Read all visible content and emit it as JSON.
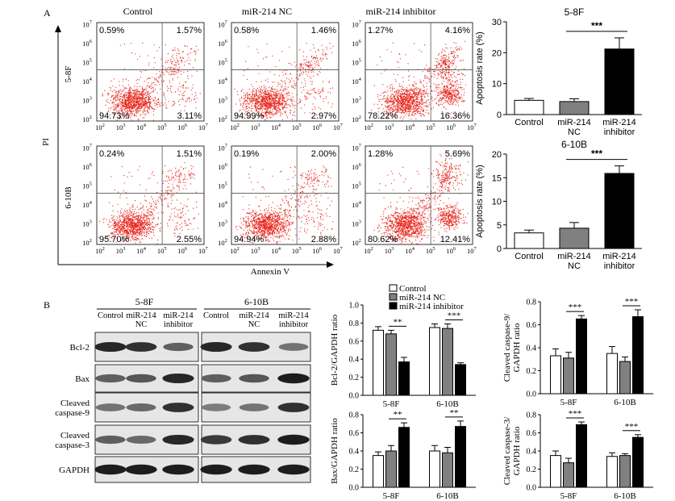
{
  "panels": {
    "A": "A",
    "B": "B"
  },
  "flow": {
    "columns": [
      "Control",
      "miR-214 NC",
      "miR-214 inhibitor"
    ],
    "rows": [
      "5-8F",
      "6-10B"
    ],
    "y_axis_label": "PI",
    "x_axis_label": "Annexin V",
    "tick_labels": [
      "10^2",
      "10^3",
      "10^4",
      "10^5",
      "10^6",
      "10^7"
    ],
    "quadrants": [
      [
        {
          "ul": "0.59%",
          "ur": "1.57%",
          "ll": "94.73%",
          "lr": "3.11%"
        },
        {
          "ul": "0.58%",
          "ur": "1.46%",
          "ll": "94.99%",
          "lr": "2.97%"
        },
        {
          "ul": "1.27%",
          "ur": "4.16%",
          "ll": "78.22%",
          "lr": "16.36%"
        }
      ],
      [
        {
          "ul": "0.24%",
          "ur": "1.51%",
          "ll": "95.70%",
          "lr": "2.55%"
        },
        {
          "ul": "0.19%",
          "ur": "2.00%",
          "ll": "94.94%",
          "lr": "2.88%"
        },
        {
          "ul": "1.28%",
          "ur": "5.69%",
          "ll": "80.62%",
          "lr": "12.41%"
        }
      ]
    ]
  },
  "western": {
    "cell_lines": [
      "5-8F",
      "6-10B"
    ],
    "lanes": [
      "Control",
      "miR-214 NC",
      "miR-214 inhibitor"
    ],
    "bands": [
      "Bcl-2",
      "Bax",
      "Cleaved caspase-9",
      "Cleaved caspase-3",
      "GAPDH"
    ]
  },
  "legend": [
    "Control",
    "miR-214 NC",
    "miR-214 inhibitor"
  ],
  "colors": {
    "control": "#ffffff",
    "nc": "#808080",
    "inhibitor": "#000000",
    "dots": "#e8281e"
  },
  "chart_data": [
    {
      "type": "bar",
      "title": "5-8F",
      "ylabel": "Apoptosis rate (%)",
      "categories": [
        "Control",
        "miR-214 NC",
        "miR-214 inhibitor"
      ],
      "values": [
        4.6,
        4.2,
        21.2
      ],
      "errors": [
        0.6,
        0.9,
        3.6
      ],
      "ylim": [
        0,
        30
      ],
      "ticks": [
        0,
        10,
        20,
        30
      ],
      "significance": "***"
    },
    {
      "type": "bar",
      "title": "6-10B",
      "ylabel": "Apoptosis rate (%)",
      "categories": [
        "Control",
        "miR-214 NC",
        "miR-214 inhibitor"
      ],
      "values": [
        3.3,
        4.3,
        15.9
      ],
      "errors": [
        0.6,
        1.2,
        1.6
      ],
      "ylim": [
        0,
        20
      ],
      "ticks": [
        0,
        5,
        10,
        15,
        20
      ],
      "significance": "***"
    },
    {
      "type": "bar",
      "ylabel": "Bcl-2/GAPDH ratio",
      "categories": [
        "5-8F",
        "6-10B"
      ],
      "series": [
        {
          "name": "Control",
          "values": [
            0.72,
            0.75
          ],
          "errors": [
            0.04,
            0.04
          ]
        },
        {
          "name": "miR-214 NC",
          "values": [
            0.68,
            0.74
          ],
          "errors": [
            0.04,
            0.05
          ]
        },
        {
          "name": "miR-214 inhibitor",
          "values": [
            0.37,
            0.34
          ],
          "errors": [
            0.05,
            0.02
          ]
        }
      ],
      "ylim": [
        0,
        1.0
      ],
      "ticks": [
        "0.0",
        "0.2",
        "0.4",
        "0.6",
        "0.8",
        "1.0"
      ],
      "significance": [
        "**",
        "***"
      ]
    },
    {
      "type": "bar",
      "ylabel": "Cleaved caspase-9/ GAPDH ratio",
      "categories": [
        "5-8F",
        "6-10B"
      ],
      "series": [
        {
          "name": "Control",
          "values": [
            0.33,
            0.35
          ],
          "errors": [
            0.06,
            0.06
          ]
        },
        {
          "name": "miR-214 NC",
          "values": [
            0.31,
            0.28
          ],
          "errors": [
            0.05,
            0.04
          ]
        },
        {
          "name": "miR-214 inhibitor",
          "values": [
            0.65,
            0.67
          ],
          "errors": [
            0.03,
            0.06
          ]
        }
      ],
      "ylim": [
        0,
        0.8
      ],
      "ticks": [
        "0.0",
        "0.2",
        "0.4",
        "0.6",
        "0.8"
      ],
      "significance": [
        "***",
        "***"
      ]
    },
    {
      "type": "bar",
      "ylabel": "Bax/GAPDH ratio",
      "categories": [
        "5-8F",
        "6-10B"
      ],
      "series": [
        {
          "name": "Control",
          "values": [
            0.35,
            0.4
          ],
          "errors": [
            0.04,
            0.06
          ]
        },
        {
          "name": "miR-214 NC",
          "values": [
            0.4,
            0.38
          ],
          "errors": [
            0.06,
            0.06
          ]
        },
        {
          "name": "miR-214 inhibitor",
          "values": [
            0.66,
            0.67
          ],
          "errors": [
            0.05,
            0.06
          ]
        }
      ],
      "ylim": [
        0,
        0.8
      ],
      "ticks": [
        "0.0",
        "0.2",
        "0.4",
        "0.6",
        "0.8"
      ],
      "significance": [
        "**",
        "**"
      ]
    },
    {
      "type": "bar",
      "ylabel": "Cleaved caspase-3/ GAPDH ratio",
      "categories": [
        "5-8F",
        "6-10B"
      ],
      "series": [
        {
          "name": "Control",
          "values": [
            0.35,
            0.34
          ],
          "errors": [
            0.05,
            0.04
          ]
        },
        {
          "name": "miR-214 NC",
          "values": [
            0.27,
            0.35
          ],
          "errors": [
            0.05,
            0.02
          ]
        },
        {
          "name": "miR-214 inhibitor",
          "values": [
            0.69,
            0.55
          ],
          "errors": [
            0.03,
            0.03
          ]
        }
      ],
      "ylim": [
        0,
        0.8
      ],
      "ticks": [
        "0.0",
        "0.2",
        "0.4",
        "0.6",
        "0.8"
      ],
      "significance": [
        "***",
        "***"
      ]
    }
  ]
}
